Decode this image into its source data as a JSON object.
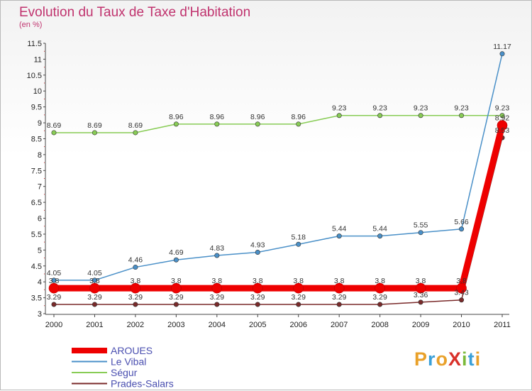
{
  "title": "Evolution du Taux de Taxe d'Habitation",
  "subtitle": "(en %)",
  "logo": "ProXiti",
  "chart_data": {
    "type": "line",
    "x": [
      "2000",
      "2001",
      "2002",
      "2003",
      "2004",
      "2005",
      "2006",
      "2007",
      "2008",
      "2009",
      "2010",
      "2011"
    ],
    "ylim": [
      3,
      11.5
    ],
    "yticks": [
      "3",
      "3.5",
      "4",
      "4.5",
      "5",
      "5.5",
      "6",
      "6.5",
      "7",
      "7.5",
      "8",
      "8.5",
      "9",
      "9.5",
      "10",
      "10.5",
      "11",
      "11.5"
    ],
    "grid": false,
    "legend_position": "bottom-left",
    "series": [
      {
        "name": "AROUES",
        "color": "#ee0000",
        "values": [
          3.8,
          3.8,
          3.8,
          3.8,
          3.8,
          3.8,
          3.8,
          3.8,
          3.8,
          3.8,
          3.8,
          8.92
        ],
        "labels": [
          "3.8",
          "3.8",
          "3.8",
          "3.8",
          "3.8",
          "3.8",
          "3.8",
          "3.8",
          "3.8",
          "3.8",
          "3.8",
          "8.92"
        ]
      },
      {
        "name": "Le Vibal",
        "color": "#4a90c8",
        "values": [
          4.05,
          4.05,
          4.46,
          4.69,
          4.83,
          4.93,
          5.18,
          5.44,
          5.44,
          5.55,
          5.66,
          11.17
        ],
        "labels": [
          "4.05",
          "4.05",
          "4.46",
          "4.69",
          "4.83",
          "4.93",
          "5.18",
          "5.44",
          "5.44",
          "5.55",
          "5.66",
          "11.17"
        ]
      },
      {
        "name": "Ségur",
        "color": "#88cc55",
        "values": [
          8.69,
          8.69,
          8.69,
          8.96,
          8.96,
          8.96,
          8.96,
          9.23,
          9.23,
          9.23,
          9.23,
          9.23
        ],
        "labels": [
          "8.69",
          "8.69",
          "8.69",
          "8.96",
          "8.96",
          "8.96",
          "8.96",
          "9.23",
          "9.23",
          "9.23",
          "9.23",
          "9.23"
        ]
      },
      {
        "name": "Prades-Salars",
        "color": "#7a2a2a",
        "values": [
          3.29,
          3.29,
          3.29,
          3.29,
          3.29,
          3.29,
          3.29,
          3.29,
          3.29,
          3.36,
          3.43,
          8.53
        ],
        "labels": [
          "3.29",
          "3.29",
          "3.29",
          "3.29",
          "3.29",
          "3.29",
          "3.29",
          "3.29",
          "3.29",
          "3.36",
          "3.43",
          "8.53"
        ]
      }
    ]
  }
}
